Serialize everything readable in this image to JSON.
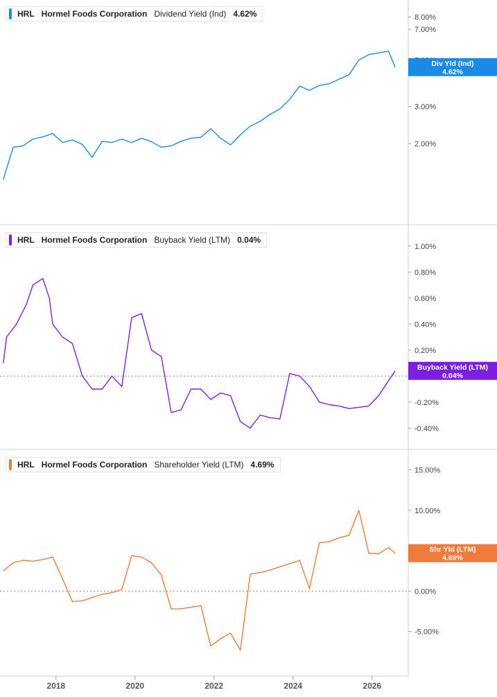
{
  "chart_data": [
    {
      "type": "line",
      "legend": {
        "ticker": "HRL",
        "company": "Hormel Foods Corporation",
        "metric": "Dividend Yield (Ind)",
        "value": "4.62%"
      },
      "color": "#1a8ae6",
      "callout": {
        "label": "Div Yld (Ind)",
        "value": "4.62%"
      },
      "ylim": [
        0.9,
        8.8
      ],
      "yscale": "log",
      "yticks": [
        {
          "value": 2,
          "label": "2.00%"
        },
        {
          "value": 3,
          "label": "3.00%"
        },
        {
          "value": 5,
          "label": "5.00%"
        },
        {
          "value": 7,
          "label": "7.00%"
        },
        {
          "value": 8,
          "label": "8.00%"
        }
      ],
      "zero_line": false,
      "x": [
        "2016-09",
        "2016-12",
        "2017-03",
        "2017-06",
        "2017-09",
        "2017-12",
        "2018-03",
        "2018-06",
        "2018-09",
        "2018-12",
        "2019-03",
        "2019-06",
        "2019-09",
        "2019-12",
        "2020-03",
        "2020-06",
        "2020-09",
        "2020-12",
        "2021-03",
        "2021-06",
        "2021-09",
        "2021-12",
        "2022-03",
        "2022-06",
        "2022-09",
        "2022-12",
        "2023-03",
        "2023-06",
        "2023-09",
        "2023-12",
        "2024-03",
        "2024-06",
        "2024-09",
        "2024-12",
        "2025-03",
        "2025-06",
        "2025-09",
        "2025-12",
        "2026-03",
        "2026-06",
        "2026-08"
      ],
      "values": [
        1.35,
        1.92,
        1.95,
        2.1,
        2.15,
        2.23,
        2.02,
        2.08,
        1.98,
        1.72,
        2.05,
        2.02,
        2.1,
        2.02,
        2.12,
        2.04,
        1.92,
        1.95,
        2.05,
        2.12,
        2.14,
        2.35,
        2.12,
        1.97,
        2.2,
        2.42,
        2.55,
        2.75,
        2.92,
        3.25,
        3.75,
        3.58,
        3.78,
        3.85,
        4.05,
        4.25,
        5.0,
        5.3,
        5.4,
        5.5,
        4.62
      ]
    },
    {
      "type": "line",
      "legend": {
        "ticker": "HRL",
        "company": "Hormel Foods Corporation",
        "metric": "Buyback Yield (LTM)",
        "value": "0.04%"
      },
      "color": "#7b1fe0",
      "callout": {
        "label": "Buyback Yield (LTM)",
        "value": "0.04%"
      },
      "ylim": [
        -0.5,
        1.1
      ],
      "yscale": "linear",
      "yticks": [
        {
          "value": -0.4,
          "label": "-0.40%"
        },
        {
          "value": -0.2,
          "label": "-0.20%"
        },
        {
          "value": 0.2,
          "label": "0.20%"
        },
        {
          "value": 0.4,
          "label": "0.40%"
        },
        {
          "value": 0.6,
          "label": "0.60%"
        },
        {
          "value": 0.8,
          "label": "0.80%"
        },
        {
          "value": 1.0,
          "label": "1.00%"
        }
      ],
      "zero_line": true,
      "x": [
        "2016-09",
        "2016-10",
        "2017-01",
        "2017-04",
        "2017-06",
        "2017-09",
        "2017-11",
        "2017-12",
        "2018-03",
        "2018-06",
        "2018-09",
        "2018-12",
        "2019-03",
        "2019-06",
        "2019-09",
        "2019-12",
        "2020-03",
        "2020-06",
        "2020-09",
        "2020-12",
        "2021-03",
        "2021-06",
        "2021-09",
        "2021-12",
        "2022-03",
        "2022-06",
        "2022-09",
        "2022-12",
        "2023-03",
        "2023-06",
        "2023-09",
        "2023-12",
        "2024-03",
        "2024-06",
        "2024-09",
        "2024-12",
        "2025-03",
        "2025-06",
        "2025-09",
        "2025-12",
        "2026-03",
        "2026-08"
      ],
      "values": [
        0.1,
        0.3,
        0.4,
        0.55,
        0.7,
        0.75,
        0.6,
        0.4,
        0.3,
        0.25,
        0.0,
        -0.1,
        -0.1,
        0.0,
        -0.08,
        0.45,
        0.48,
        0.2,
        0.15,
        -0.28,
        -0.26,
        -0.1,
        -0.1,
        -0.18,
        -0.13,
        -0.15,
        -0.35,
        -0.4,
        -0.3,
        -0.32,
        -0.33,
        0.02,
        0.0,
        -0.08,
        -0.2,
        -0.22,
        -0.23,
        -0.25,
        -0.24,
        -0.23,
        -0.15,
        0.04
      ]
    },
    {
      "type": "line",
      "legend": {
        "ticker": "HRL",
        "company": "Hormel Foods Corporation",
        "metric": "Shareholder Yield (LTM)",
        "value": "4.69%"
      },
      "color": "#f07a3a",
      "callout": {
        "label": "Shr Yld (LTM)",
        "value": "4.69%"
      },
      "ylim": [
        -9.5,
        16.5
      ],
      "yscale": "linear",
      "yticks": [
        {
          "value": -5,
          "label": "-5.00%"
        },
        {
          "value": 0,
          "label": "0.00%"
        },
        {
          "value": 10,
          "label": "10.00%"
        },
        {
          "value": 15,
          "label": "15.00%"
        }
      ],
      "zero_line": true,
      "x": [
        "2016-09",
        "2016-12",
        "2017-03",
        "2017-06",
        "2017-09",
        "2017-12",
        "2018-03",
        "2018-06",
        "2018-09",
        "2018-12",
        "2019-03",
        "2019-06",
        "2019-09",
        "2019-12",
        "2020-03",
        "2020-06",
        "2020-09",
        "2020-12",
        "2021-03",
        "2021-06",
        "2021-09",
        "2021-12",
        "2022-03",
        "2022-06",
        "2022-09",
        "2022-12",
        "2023-03",
        "2023-06",
        "2023-09",
        "2023-12",
        "2024-03",
        "2024-06",
        "2024-09",
        "2024-12",
        "2025-03",
        "2025-06",
        "2025-09",
        "2025-12",
        "2026-03",
        "2026-06",
        "2026-08"
      ],
      "values": [
        2.5,
        3.5,
        3.8,
        3.7,
        3.9,
        4.2,
        1.5,
        -1.3,
        -1.2,
        -0.8,
        -0.4,
        -0.2,
        0.2,
        4.4,
        4.2,
        3.5,
        2.0,
        -2.2,
        -2.2,
        -2.0,
        -1.8,
        -6.8,
        -5.9,
        -5.2,
        -7.3,
        2.1,
        2.3,
        2.6,
        3.0,
        3.4,
        3.8,
        0.3,
        6.0,
        6.1,
        6.6,
        6.9,
        10.0,
        4.7,
        4.6,
        5.4,
        4.69
      ]
    }
  ],
  "x_axis": {
    "ticks": [
      {
        "value": "2018-01",
        "label": "2018"
      },
      {
        "value": "2020-01",
        "label": "2020"
      },
      {
        "value": "2022-01",
        "label": "2022"
      },
      {
        "value": "2024-01",
        "label": "2024"
      },
      {
        "value": "2026-01",
        "label": "2026"
      }
    ],
    "range": [
      "2016-08",
      "2026-12"
    ]
  }
}
